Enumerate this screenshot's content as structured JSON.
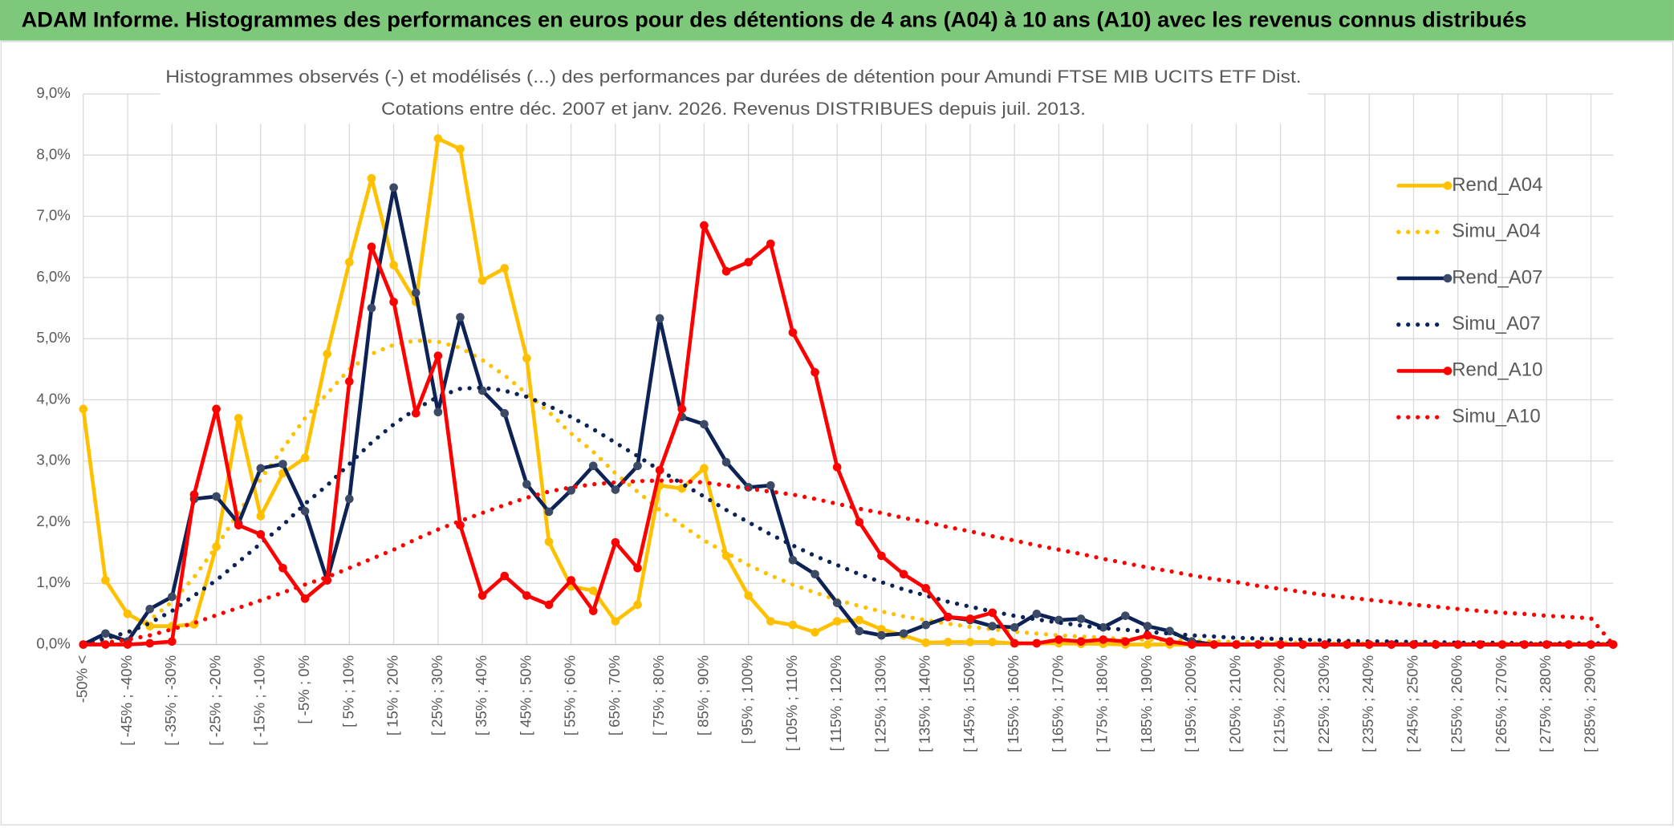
{
  "header": {
    "title": "ADAM Informe. Histogrammes des performances en euros pour des détentions de 4 ans (A04) à 10 ans (A10) avec les revenus connus distribués"
  },
  "chart_data": {
    "type": "line",
    "title": "Histogrammes observés (-) et modélisés (...) des performances par durées de détention pour Amundi FTSE MIB UCITS ETF Dist.",
    "subtitle": "Cotations entre déc. 2007 et janv. 2026. Revenus DISTRIBUES depuis juil. 2013.",
    "categories": [
      "-50% <",
      null,
      "[ -45% ; -40%",
      null,
      "[ -35% ; -30%",
      null,
      "[ -25% ; -20%",
      null,
      "[ -15% ; -10%",
      null,
      "[ -5% ; 0%",
      null,
      "[ 5% ; 10%",
      null,
      "[ 15% ; 20%",
      null,
      "[ 25% ; 30%",
      null,
      "[ 35% ; 40%",
      null,
      "[ 45% ; 50%",
      null,
      "[ 55% ; 60%",
      null,
      "[ 65% ; 70%",
      null,
      "[ 75% ; 80%",
      null,
      "[ 85% ; 90%",
      null,
      "[ 95% ; 100%",
      null,
      "[ 105% ; 110%",
      null,
      "[ 115% ; 120%",
      null,
      "[ 125% ; 130%",
      null,
      "[ 135% ; 140%",
      null,
      "[ 145% ; 150%",
      null,
      "[ 155% ; 160%",
      null,
      "[ 165% ; 170%",
      null,
      "[ 175% ; 180%",
      null,
      "[ 185% ; 190%",
      null,
      "[ 195% ; 200%",
      null,
      "[ 205% ; 210%",
      null,
      "[ 215% ; 220%",
      null,
      "[ 225% ; 230%",
      null,
      "[ 235% ; 240%",
      null,
      "[ 245% ; 250%",
      null,
      "[ 255% ; 260%",
      null,
      "[ 265% ; 270%",
      null,
      "[ 275% ; 280%",
      null,
      "[ 285% ; 290%",
      null
    ],
    "series": [
      {
        "name": "Rend_A04",
        "color": "#ffc000",
        "style": "solid",
        "values": [
          3.85,
          1.05,
          0.5,
          0.3,
          0.3,
          0.33,
          1.6,
          3.7,
          2.1,
          2.8,
          3.05,
          4.75,
          6.25,
          7.62,
          6.2,
          5.6,
          8.27,
          8.1,
          5.95,
          6.15,
          4.68,
          1.68,
          0.95,
          0.88,
          0.38,
          0.65,
          2.6,
          2.55,
          2.88,
          1.45,
          0.8,
          0.38,
          0.32,
          0.2,
          0.38,
          0.4,
          0.25,
          0.15,
          0.03,
          0.04,
          0.04,
          0.04,
          0.02,
          0.02,
          0.02,
          0.01,
          0.01,
          0,
          0,
          0,
          0,
          0,
          0,
          0,
          0,
          0,
          0,
          0,
          0,
          0,
          0,
          0,
          0,
          0,
          0,
          0,
          0,
          0,
          0,
          0
        ]
      },
      {
        "name": "Simu_A04",
        "color": "#ffc000",
        "style": "dotted",
        "values": [
          0,
          0.1,
          0.2,
          0.4,
          0.7,
          1.1,
          1.6,
          2.15,
          2.7,
          3.2,
          3.7,
          4.1,
          4.5,
          4.75,
          4.9,
          4.97,
          4.95,
          4.85,
          4.65,
          4.4,
          4.1,
          3.8,
          3.45,
          3.15,
          2.8,
          2.5,
          2.2,
          1.95,
          1.7,
          1.5,
          1.3,
          1.13,
          0.98,
          0.85,
          0.73,
          0.63,
          0.54,
          0.46,
          0.4,
          0.34,
          0.29,
          0.25,
          0.21,
          0.18,
          0.15,
          0.13,
          0.11,
          0.09,
          0.08,
          0.07,
          0.06,
          0.05,
          0.04,
          0.04,
          0.03,
          0.03,
          0.02,
          0.02,
          0.02,
          0.01,
          0.01,
          0.01,
          0.01,
          0.01,
          0.01,
          0.01,
          0.01,
          0.01,
          0.01,
          0.01
        ]
      },
      {
        "name": "Rend_A07",
        "color": "#0d2356",
        "style": "solid",
        "values": [
          0,
          0.18,
          0.05,
          0.58,
          0.78,
          2.38,
          2.42,
          1.98,
          2.88,
          2.95,
          2.18,
          1.05,
          2.38,
          5.5,
          7.47,
          5.75,
          3.8,
          5.35,
          4.15,
          3.78,
          2.62,
          2.17,
          2.52,
          2.92,
          2.53,
          2.92,
          5.33,
          3.72,
          3.6,
          2.98,
          2.57,
          2.6,
          1.38,
          1.15,
          0.68,
          0.22,
          0.15,
          0.18,
          0.32,
          0.45,
          0.4,
          0.3,
          0.28,
          0.5,
          0.4,
          0.42,
          0.28,
          0.47,
          0.3,
          0.22,
          0.05,
          0,
          0,
          0,
          0,
          0,
          0,
          0,
          0,
          0,
          0,
          0,
          0,
          0,
          0,
          0,
          0,
          0,
          0,
          0
        ]
      },
      {
        "name": "Simu_A07",
        "color": "#0d2356",
        "style": "dotted",
        "values": [
          0,
          0.1,
          0.2,
          0.35,
          0.55,
          0.8,
          1.05,
          1.35,
          1.65,
          1.95,
          2.3,
          2.6,
          2.95,
          3.3,
          3.6,
          3.85,
          4.05,
          4.18,
          4.2,
          4.15,
          4.05,
          3.9,
          3.72,
          3.52,
          3.3,
          3.08,
          2.85,
          2.63,
          2.42,
          2.2,
          2.0,
          1.8,
          1.62,
          1.45,
          1.3,
          1.15,
          1.02,
          0.9,
          0.8,
          0.7,
          0.62,
          0.54,
          0.47,
          0.41,
          0.36,
          0.31,
          0.27,
          0.24,
          0.21,
          0.18,
          0.15,
          0.13,
          0.11,
          0.1,
          0.09,
          0.08,
          0.07,
          0.06,
          0.05,
          0.05,
          0.04,
          0.04,
          0.03,
          0.03,
          0.03,
          0.02,
          0.02,
          0.02,
          0.02,
          0.02
        ]
      },
      {
        "name": "Rend_A10",
        "color": "#ff0000",
        "style": "solid",
        "values": [
          0,
          0,
          0,
          0.02,
          0.05,
          2.45,
          3.85,
          1.95,
          1.8,
          1.25,
          0.75,
          1.05,
          4.3,
          6.5,
          5.6,
          3.78,
          4.72,
          1.95,
          0.8,
          1.12,
          0.8,
          0.65,
          1.05,
          0.55,
          1.67,
          1.25,
          2.85,
          3.85,
          6.85,
          6.1,
          6.25,
          6.55,
          5.1,
          4.45,
          2.9,
          2.0,
          1.45,
          1.15,
          0.92,
          0.45,
          0.42,
          0.52,
          0.02,
          0.02,
          0.08,
          0.05,
          0.08,
          0.05,
          0.15,
          0.05,
          0,
          0,
          0,
          0,
          0,
          0,
          0,
          0,
          0,
          0,
          0,
          0,
          0,
          0,
          0,
          0,
          0,
          0,
          0,
          0
        ]
      },
      {
        "name": "Simu_A10",
        "color": "#ff0000",
        "style": "dotted",
        "values": [
          0,
          0.03,
          0.08,
          0.15,
          0.25,
          0.35,
          0.48,
          0.6,
          0.72,
          0.85,
          0.98,
          1.1,
          1.25,
          1.4,
          1.55,
          1.72,
          1.88,
          2.02,
          2.15,
          2.28,
          2.4,
          2.5,
          2.57,
          2.62,
          2.65,
          2.67,
          2.68,
          2.67,
          2.65,
          2.6,
          2.55,
          2.5,
          2.45,
          2.38,
          2.3,
          2.22,
          2.15,
          2.07,
          2.0,
          1.92,
          1.85,
          1.77,
          1.7,
          1.62,
          1.55,
          1.48,
          1.4,
          1.33,
          1.26,
          1.2,
          1.13,
          1.07,
          1.02,
          0.96,
          0.91,
          0.86,
          0.81,
          0.77,
          0.73,
          0.69,
          0.65,
          0.62,
          0.58,
          0.55,
          0.52,
          0.5,
          0.47,
          0.45,
          0.43,
          0
        ]
      }
    ],
    "ylim": [
      0,
      9
    ],
    "yticks": [
      {
        "value": 0,
        "label": "0,0%"
      },
      {
        "value": 1,
        "label": "1,0%"
      },
      {
        "value": 2,
        "label": "2,0%"
      },
      {
        "value": 3,
        "label": "3,0%"
      },
      {
        "value": 4,
        "label": "4,0%"
      },
      {
        "value": 5,
        "label": "5,0%"
      },
      {
        "value": 6,
        "label": "6,0%"
      },
      {
        "value": 7,
        "label": "7,0%"
      },
      {
        "value": 8,
        "label": "8,0%"
      },
      {
        "value": 9,
        "label": "9,0%"
      }
    ],
    "grid": true,
    "legend": "right"
  }
}
